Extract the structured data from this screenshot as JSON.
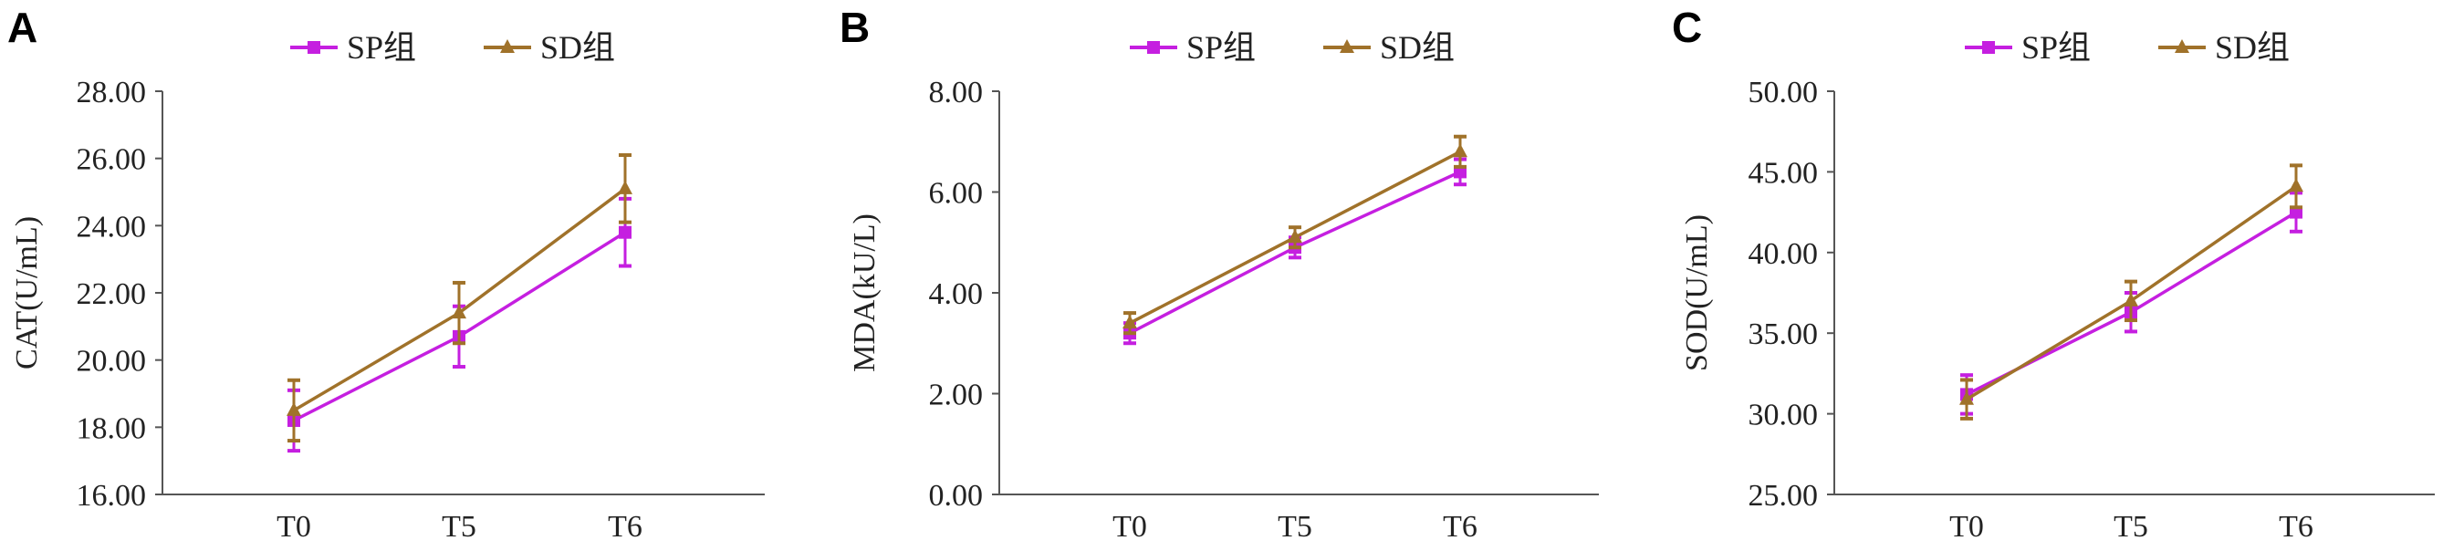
{
  "colors": {
    "sp": "#c51fe0",
    "sd": "#a0722a"
  },
  "chart_data": [
    {
      "type": "line",
      "panel_label": "A",
      "ylabel": "CAT(U/mL)",
      "xlabel": "",
      "categories": [
        "T0",
        "T5",
        "T6"
      ],
      "ylim": [
        16,
        28
      ],
      "yticks": [
        "16.00",
        "18.00",
        "20.00",
        "22.00",
        "24.00",
        "26.00",
        "28.00"
      ],
      "legend_position": "top",
      "series": [
        {
          "name": "SP组",
          "marker": "square",
          "values": [
            18.2,
            20.7,
            23.8
          ],
          "errors": [
            0.9,
            0.9,
            1.0
          ]
        },
        {
          "name": "SD组",
          "marker": "triangle",
          "values": [
            18.5,
            21.4,
            25.1
          ],
          "errors": [
            0.9,
            0.9,
            1.0
          ]
        }
      ]
    },
    {
      "type": "line",
      "panel_label": "B",
      "ylabel": "MDA(kU/L)",
      "xlabel": "",
      "categories": [
        "T0",
        "T5",
        "T6"
      ],
      "ylim": [
        0,
        8
      ],
      "yticks": [
        "0.00",
        "2.00",
        "4.00",
        "6.00",
        "8.00"
      ],
      "legend_position": "top",
      "series": [
        {
          "name": "SP组",
          "marker": "square",
          "values": [
            3.2,
            4.9,
            6.4
          ],
          "errors": [
            0.2,
            0.2,
            0.25
          ]
        },
        {
          "name": "SD组",
          "marker": "triangle",
          "values": [
            3.4,
            5.1,
            6.8
          ],
          "errors": [
            0.2,
            0.2,
            0.3
          ]
        }
      ]
    },
    {
      "type": "line",
      "panel_label": "C",
      "ylabel": "SOD(U/mL)",
      "xlabel": "",
      "categories": [
        "T0",
        "T5",
        "T6"
      ],
      "ylim": [
        25,
        50
      ],
      "yticks": [
        "25.00",
        "30.00",
        "35.00",
        "40.00",
        "45.00",
        "50.00"
      ],
      "legend_position": "top",
      "series": [
        {
          "name": "SP组",
          "marker": "square",
          "values": [
            31.2,
            36.3,
            42.5
          ],
          "errors": [
            1.2,
            1.2,
            1.2
          ]
        },
        {
          "name": "SD组",
          "marker": "triangle",
          "values": [
            30.9,
            37.0,
            44.1
          ],
          "errors": [
            1.2,
            1.2,
            1.3
          ]
        }
      ]
    }
  ]
}
